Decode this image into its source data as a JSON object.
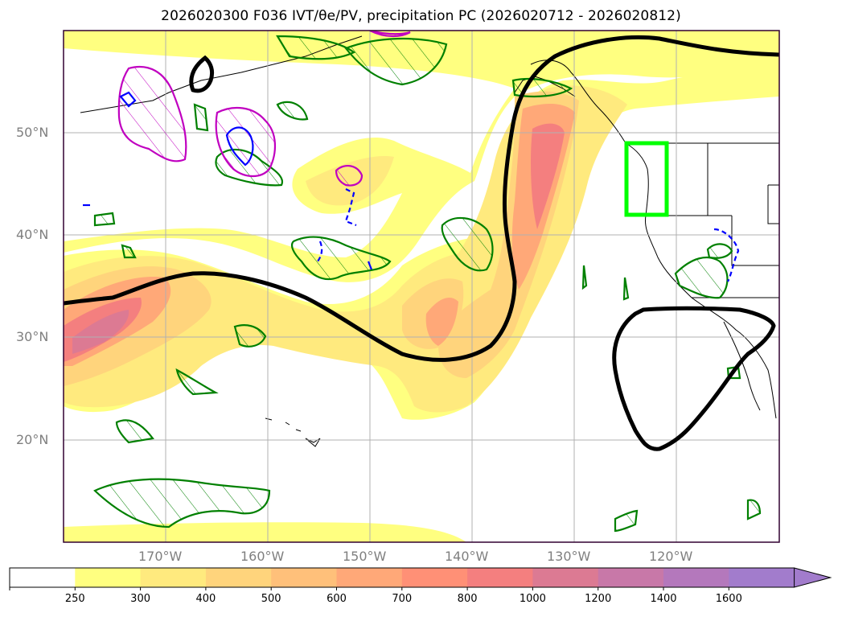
{
  "title": "2026020300 F036 IVT/θe/PV, precipitation PC (2026020712 - 2026020812)",
  "latitude_labels": [
    "50°N",
    "40°N",
    "30°N",
    "20°N"
  ],
  "longitude_labels": [
    "170°W",
    "160°W",
    "150°W",
    "140°W",
    "130°W",
    "120°W"
  ],
  "colorbar": {
    "ticks": [
      "250",
      "300",
      "400",
      "500",
      "600",
      "700",
      "800",
      "1000",
      "1200",
      "1400",
      "1600"
    ],
    "colors": [
      "#ffff80",
      "#ffea7e",
      "#ffd47c",
      "#ffc07a",
      "#ffa878",
      "#ff9076",
      "#f47f7f",
      "#dc7a93",
      "#c878a8",
      "#b478bc",
      "#a27ccc"
    ],
    "extend": "max"
  },
  "legend": {
    "theta_e_contour_color": "#000000",
    "pv_positive_color": "#c000c0",
    "pv_negative_color": "#0000ff",
    "precipitation_color": "#008000",
    "highlight_box_color": "#00ff00"
  }
}
